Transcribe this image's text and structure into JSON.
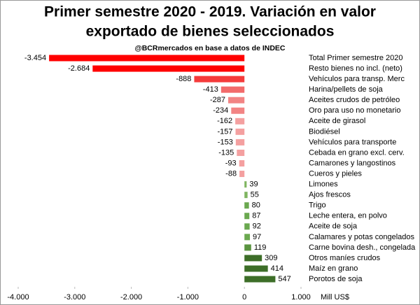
{
  "chart_data": {
    "type": "hbar",
    "title": [
      "Primer semestre 2020 - 2019. Variación en valor",
      "exportado de bienes seleccionados"
    ],
    "subtitle": "@BCRmercados en base a datos de INDEC",
    "x_unit": "Mill US$",
    "categories": [
      "Total Primer semestre 2020",
      "Resto bienes no incl. (neto)",
      "Vehículos para transp. Merc",
      "Harina/pellets  de soja",
      "Aceites crudos de petróleo",
      "Oro para uso no monetario",
      "Aceite de girasol",
      "Biodiésel",
      "Vehículos para transporte",
      "Cebada en grano excl. cerv.",
      "Camarones y langostinos",
      "Cueros y pieles",
      "Limones",
      "Ajos frescos",
      "Trigo",
      "Leche entera, en polvo",
      "Aceite de soja",
      "Calamares y potas congelados",
      "Carne bovina desh., congelada",
      "Otros maníes crudos",
      "Maíz en grano",
      "Porotos de soja"
    ],
    "values": [
      -3454,
      -2684,
      -888,
      -413,
      -287,
      -234,
      -162,
      -157,
      -153,
      -135,
      -93,
      -88,
      39,
      55,
      80,
      87,
      92,
      97,
      119,
      309,
      414,
      547
    ],
    "value_labels": [
      "-3.454",
      "-2.684",
      "-888",
      "-413",
      "-287",
      "-234",
      "-162",
      "-157",
      "-153",
      "-135",
      "-93",
      "-88",
      "39",
      "55",
      "80",
      "87",
      "92",
      "97",
      "119",
      "309",
      "414",
      "547"
    ],
    "colors": [
      "#ff0000",
      "#ff0000",
      "#f53b3b",
      "#f26a6a",
      "#f28484",
      "#f28484",
      "#f4a0a0",
      "#f4a0a0",
      "#f4a0a0",
      "#f4a0a0",
      "#f4a0a0",
      "#f4a0a0",
      "#7fb560",
      "#7fb560",
      "#6aa84f",
      "#6aa84f",
      "#6aa84f",
      "#6aa84f",
      "#5a9440",
      "#3d6e28",
      "#3d6e28",
      "#3d6e28"
    ],
    "xlim": [
      -4000,
      1000
    ],
    "xticks": [
      {
        "value": -4000,
        "label": "-4.000"
      },
      {
        "value": -3000,
        "label": "-3.000"
      },
      {
        "value": -2000,
        "label": "-2.000"
      },
      {
        "value": -1000,
        "label": "-1.000"
      },
      0,
      {
        "value": 1000,
        "label": "1.000"
      }
    ]
  }
}
